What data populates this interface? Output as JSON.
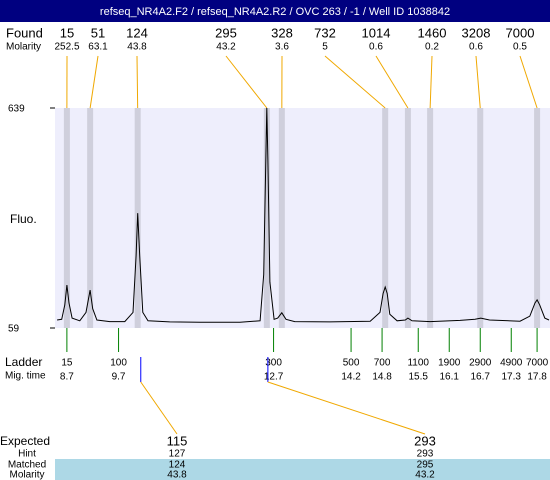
{
  "chart_data": {
    "type": "line",
    "title": "refseq_NR4A2.F2 / refseq_NR4A2.R2 / OVC 263 / -1 / Well ID 1038842",
    "y_label": "Fluo.",
    "ylim": [
      59,
      639
    ],
    "yticks": [
      59,
      639
    ],
    "xlim": [
      8.47,
      18.05
    ],
    "color": "#000000",
    "x": [
      8.51,
      8.6,
      8.66,
      8.7,
      8.74,
      8.8,
      8.95,
      9.07,
      9.15,
      9.2,
      9.28,
      9.53,
      9.82,
      9.98,
      10.04,
      10.07,
      10.11,
      10.17,
      10.27,
      10.69,
      11.28,
      12.05,
      12.44,
      12.51,
      12.55,
      12.57,
      12.59,
      12.63,
      12.71,
      12.78,
      12.86,
      12.94,
      13.11,
      13.79,
      14.57,
      14.76,
      14.82,
      14.86,
      14.9,
      14.95,
      15.09,
      15.25,
      15.3,
      15.38,
      15.73,
      16.31,
      16.6,
      16.71,
      16.88,
      17.47,
      17.66,
      17.76,
      17.8,
      17.85,
      17.95,
      18.03
    ],
    "values": [
      80,
      82,
      120,
      172,
      125,
      85,
      78,
      100,
      159,
      110,
      80,
      76,
      76,
      100,
      250,
      362,
      250,
      100,
      78,
      75,
      74,
      74,
      78,
      200,
      500,
      639,
      500,
      180,
      82,
      85,
      99,
      82,
      76,
      75,
      77,
      100,
      150,
      167,
      150,
      95,
      78,
      80,
      85,
      78,
      76,
      79,
      82,
      85,
      80,
      77,
      90,
      125,
      133,
      120,
      85,
      80
    ],
    "found": {
      "label": "Found",
      "molarity_label": "Molarity",
      "sizes": [
        15,
        51,
        124,
        295,
        328,
        732,
        1014,
        1460,
        3208,
        7000
      ],
      "molarity": [
        252.5,
        63.1,
        43.8,
        43.2,
        3.6,
        5,
        0.6,
        0.2,
        0.6,
        0.5
      ],
      "times": [
        8.7,
        9.15,
        10.07,
        12.57,
        12.86,
        14.86,
        15.3,
        15.73,
        16.7,
        17.8
      ]
    },
    "ladder": {
      "label": "Ladder",
      "time_label": "Mig. time",
      "sizes": [
        15,
        100,
        300,
        500,
        700,
        1100,
        1900,
        2900,
        4900,
        7000
      ],
      "times": [
        8.7,
        9.7,
        12.7,
        14.2,
        14.8,
        15.5,
        16.1,
        16.7,
        17.3,
        17.8
      ]
    },
    "expected": {
      "label": "Expected",
      "hint_label": "Hint",
      "matched_label": "Matched",
      "molarity_label": "Molarity",
      "sizes": [
        115,
        293
      ],
      "hint": [
        127,
        293
      ],
      "matched": [
        124,
        295
      ],
      "molarity": [
        43.8,
        43.2
      ],
      "times": [
        10.13,
        12.59
      ]
    }
  }
}
